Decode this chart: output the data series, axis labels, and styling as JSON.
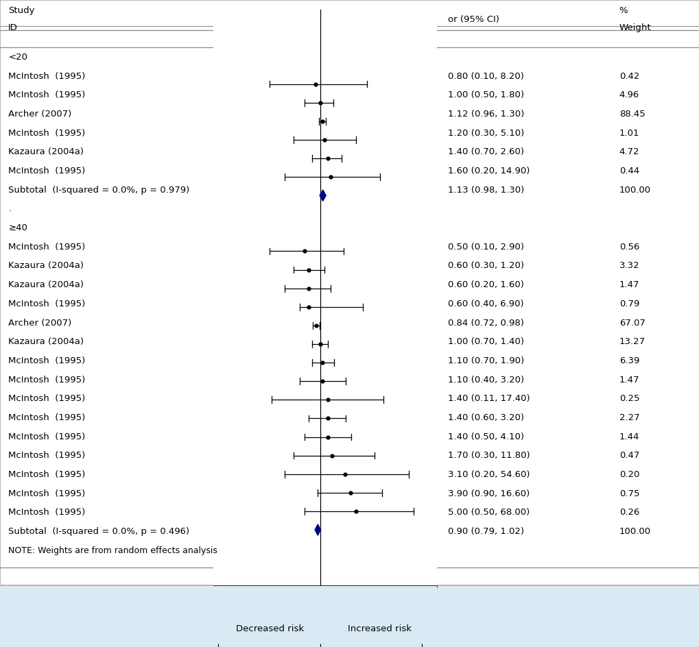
{
  "background_color": "#daeaf5",
  "plot_bg_color": "#ffffff",
  "studies_group1": [
    {
      "label": "McIntosh  (1995)",
      "or": 0.8,
      "ci_lo": 0.1,
      "ci_hi": 8.2,
      "or_str": "0.80 (0.10, 8.20)",
      "weight": "0.42"
    },
    {
      "label": "McIntosh  (1995)",
      "or": 1.0,
      "ci_lo": 0.5,
      "ci_hi": 1.8,
      "or_str": "1.00 (0.50, 1.80)",
      "weight": "4.96"
    },
    {
      "label": "Archer (2007)",
      "or": 1.12,
      "ci_lo": 0.96,
      "ci_hi": 1.3,
      "or_str": "1.12 (0.96, 1.30)",
      "weight": "88.45"
    },
    {
      "label": "McIntosh  (1995)",
      "or": 1.2,
      "ci_lo": 0.3,
      "ci_hi": 5.1,
      "or_str": "1.20 (0.30, 5.10)",
      "weight": "1.01"
    },
    {
      "label": "Kazaura (2004a)",
      "or": 1.4,
      "ci_lo": 0.7,
      "ci_hi": 2.6,
      "or_str": "1.40 (0.70, 2.60)",
      "weight": "4.72"
    },
    {
      "label": "McIntosh  (1995)",
      "or": 1.6,
      "ci_lo": 0.2,
      "ci_hi": 14.9,
      "or_str": "1.60 (0.20, 14.90)",
      "weight": "0.44"
    }
  ],
  "subtotal1": {
    "or": 1.13,
    "ci_lo": 0.98,
    "ci_hi": 1.3,
    "or_str": "1.13 (0.98, 1.30)",
    "weight": "100.00",
    "label": "Subtotal  (I-squared = 0.0%, p = 0.979)"
  },
  "subgroup1_label": "<20",
  "subgroup2_label": "≥40",
  "studies_group2": [
    {
      "label": "McIntosh  (1995)",
      "or": 0.5,
      "ci_lo": 0.1,
      "ci_hi": 2.9,
      "or_str": "0.50 (0.10, 2.90)",
      "weight": "0.56"
    },
    {
      "label": "Kazaura (2004a)",
      "or": 0.6,
      "ci_lo": 0.3,
      "ci_hi": 1.2,
      "or_str": "0.60 (0.30, 1.20)",
      "weight": "3.32"
    },
    {
      "label": "Kazaura (2004a)",
      "or": 0.6,
      "ci_lo": 0.2,
      "ci_hi": 1.6,
      "or_str": "0.60 (0.20, 1.60)",
      "weight": "1.47"
    },
    {
      "label": "McIntosh  (1995)",
      "or": 0.6,
      "ci_lo": 0.4,
      "ci_hi": 6.9,
      "or_str": "0.60 (0.40, 6.90)",
      "weight": "0.79"
    },
    {
      "label": "Archer (2007)",
      "or": 0.84,
      "ci_lo": 0.72,
      "ci_hi": 0.98,
      "or_str": "0.84 (0.72, 0.98)",
      "weight": "67.07"
    },
    {
      "label": "Kazaura (2004a)",
      "or": 1.0,
      "ci_lo": 0.7,
      "ci_hi": 1.4,
      "or_str": "1.00 (0.70, 1.40)",
      "weight": "13.27"
    },
    {
      "label": "McIntosh  (1995)",
      "or": 1.1,
      "ci_lo": 0.7,
      "ci_hi": 1.9,
      "or_str": "1.10 (0.70, 1.90)",
      "weight": "6.39"
    },
    {
      "label": "McIntosh  (1995)",
      "or": 1.1,
      "ci_lo": 0.4,
      "ci_hi": 3.2,
      "or_str": "1.10 (0.40, 3.20)",
      "weight": "1.47"
    },
    {
      "label": "McIntosh  (1995)",
      "or": 1.4,
      "ci_lo": 0.11,
      "ci_hi": 17.4,
      "or_str": "1.40 (0.11, 17.40)",
      "weight": "0.25"
    },
    {
      "label": "McIntosh  (1995)",
      "or": 1.4,
      "ci_lo": 0.6,
      "ci_hi": 3.2,
      "or_str": "1.40 (0.60, 3.20)",
      "weight": "2.27"
    },
    {
      "label": "McIntosh  (1995)",
      "or": 1.4,
      "ci_lo": 0.5,
      "ci_hi": 4.1,
      "or_str": "1.40 (0.50, 4.10)",
      "weight": "1.44"
    },
    {
      "label": "McIntosh  (1995)",
      "or": 1.7,
      "ci_lo": 0.3,
      "ci_hi": 11.8,
      "or_str": "1.70 (0.30, 11.80)",
      "weight": "0.47"
    },
    {
      "label": "McIntosh  (1995)",
      "or": 3.1,
      "ci_lo": 0.2,
      "ci_hi": 54.6,
      "or_str": "3.10 (0.20, 54.60)",
      "weight": "0.20"
    },
    {
      "label": "McIntosh  (1995)",
      "or": 3.9,
      "ci_lo": 0.9,
      "ci_hi": 16.6,
      "or_str": "3.90 (0.90, 16.60)",
      "weight": "0.75"
    },
    {
      "label": "McIntosh  (1995)",
      "or": 5.0,
      "ci_lo": 0.5,
      "ci_hi": 68.0,
      "or_str": "5.00 (0.50, 68.00)",
      "weight": "0.26"
    }
  ],
  "subtotal2": {
    "or": 0.9,
    "ci_lo": 0.79,
    "ci_hi": 1.02,
    "or_str": "0.90 (0.79, 1.02)",
    "weight": "100.00",
    "label": "Subtotal  (I-squared = 0.0%, p = 0.496)"
  },
  "note": "NOTE: Weights are from random effects analysis",
  "diamond_color": "#00008B",
  "line_color": "#000000",
  "text_color": "#000000",
  "font_size": 9.5,
  "tick_font_size": 10.5,
  "xaxis_label_left": "Decreased risk",
  "xaxis_label_right": "Increased risk"
}
